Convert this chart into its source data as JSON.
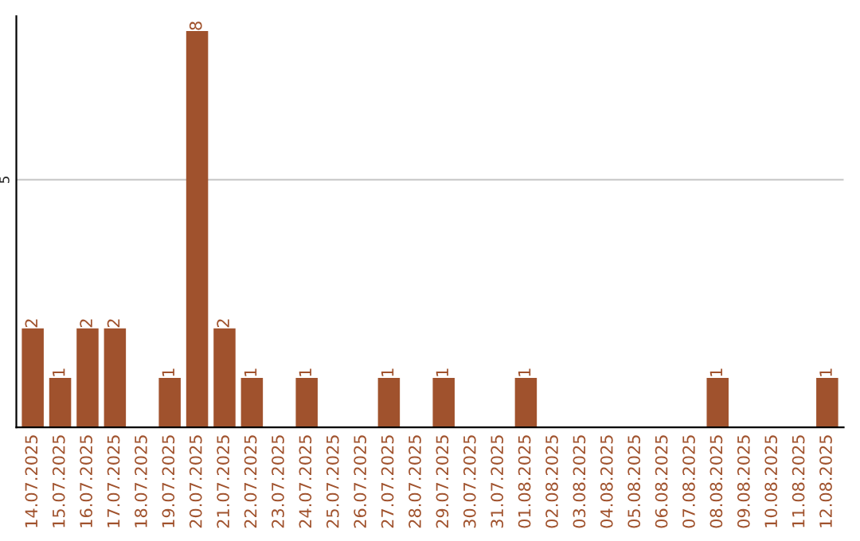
{
  "chart_data": {
    "type": "bar",
    "categories": [
      "14.07.2025",
      "15.07.2025",
      "16.07.2025",
      "17.07.2025",
      "18.07.2025",
      "19.07.2025",
      "20.07.2025",
      "21.07.2025",
      "22.07.2025",
      "23.07.2025",
      "24.07.2025",
      "25.07.2025",
      "26.07.2025",
      "27.07.2025",
      "28.07.2025",
      "29.07.2025",
      "30.07.2025",
      "31.07.2025",
      "01.08.2025",
      "02.08.2025",
      "03.08.2025",
      "04.08.2025",
      "05.08.2025",
      "06.08.2025",
      "07.08.2025",
      "08.08.2025",
      "09.08.2025",
      "10.08.2025",
      "11.08.2025",
      "12.08.2025"
    ],
    "values": [
      2,
      1,
      2,
      2,
      0,
      1,
      8,
      2,
      1,
      0,
      1,
      0,
      0,
      1,
      0,
      1,
      0,
      0,
      1,
      0,
      0,
      0,
      0,
      0,
      0,
      1,
      0,
      0,
      0,
      1
    ],
    "value_labels": [
      "2",
      "1",
      "2",
      "2",
      null,
      "1",
      "8",
      "2",
      "1",
      null,
      "1",
      null,
      null,
      "1",
      null,
      "1",
      null,
      null,
      "1",
      null,
      null,
      null,
      null,
      null,
      null,
      "1",
      null,
      null,
      null,
      "1"
    ],
    "color": "#a0522d",
    "ylim": [
      0,
      8.3
    ],
    "yticks": [
      5
    ],
    "grid": "y"
  }
}
